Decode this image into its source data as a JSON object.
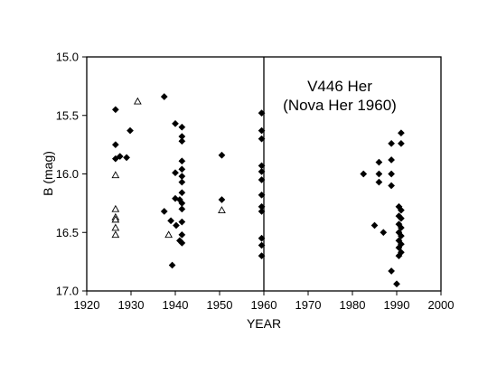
{
  "chart_data": {
    "type": "scatter",
    "title": "",
    "xlabel": "YEAR",
    "ylabel": "B (mag)",
    "xlim": [
      1920,
      2000
    ],
    "ylim": [
      15.0,
      17.0
    ],
    "y_inverted": true,
    "x_ticks": [
      "1920",
      "1930",
      "1940",
      "1950",
      "1960",
      "1970",
      "1980",
      "1990",
      "2000"
    ],
    "y_ticks": [
      "15.0",
      "15.5",
      "16.0",
      "16.5",
      "17.0"
    ],
    "grid": false,
    "legend": "none",
    "annotation": {
      "line1": "V446 Her",
      "line2": "(Nova Her 1960)"
    },
    "vertical_line_x": 1960,
    "series": [
      {
        "marker": "filled-diamond",
        "color": "#000000",
        "points": [
          [
            1926.5,
            15.45
          ],
          [
            1926.5,
            15.75
          ],
          [
            1926.5,
            15.87
          ],
          [
            1927.5,
            15.85
          ],
          [
            1929.0,
            15.86
          ],
          [
            1929.8,
            15.63
          ],
          [
            1937.5,
            15.34
          ],
          [
            1937.5,
            16.32
          ],
          [
            1939.0,
            16.4
          ],
          [
            1939.3,
            16.78
          ],
          [
            1940.0,
            15.57
          ],
          [
            1940.0,
            15.99
          ],
          [
            1940.0,
            16.21
          ],
          [
            1940.2,
            16.44
          ],
          [
            1941.0,
            16.22
          ],
          [
            1941.0,
            16.57
          ],
          [
            1941.5,
            15.6
          ],
          [
            1941.5,
            15.68
          ],
          [
            1941.5,
            15.72
          ],
          [
            1941.5,
            15.89
          ],
          [
            1941.5,
            15.96
          ],
          [
            1941.5,
            16.02
          ],
          [
            1941.5,
            16.07
          ],
          [
            1941.5,
            16.16
          ],
          [
            1941.5,
            16.25
          ],
          [
            1941.5,
            16.3
          ],
          [
            1941.5,
            16.41
          ],
          [
            1941.5,
            16.52
          ],
          [
            1941.5,
            16.59
          ],
          [
            1950.5,
            15.84
          ],
          [
            1950.5,
            16.22
          ],
          [
            1959.5,
            15.48
          ],
          [
            1959.5,
            15.63
          ],
          [
            1959.5,
            15.7
          ],
          [
            1959.5,
            15.93
          ],
          [
            1959.5,
            15.98
          ],
          [
            1959.5,
            16.05
          ],
          [
            1959.5,
            16.18
          ],
          [
            1959.5,
            16.28
          ],
          [
            1959.5,
            16.32
          ],
          [
            1959.5,
            16.55
          ],
          [
            1959.5,
            16.61
          ],
          [
            1959.5,
            16.7
          ],
          [
            1982.5,
            16.0
          ],
          [
            1985.0,
            16.44
          ],
          [
            1986.0,
            15.9
          ],
          [
            1986.0,
            16.0
          ],
          [
            1986.0,
            16.07
          ],
          [
            1987.0,
            16.5
          ],
          [
            1988.8,
            15.74
          ],
          [
            1988.8,
            15.88
          ],
          [
            1988.8,
            16.0
          ],
          [
            1988.8,
            16.1
          ],
          [
            1988.8,
            16.83
          ],
          [
            1990.0,
            16.94
          ],
          [
            1990.5,
            16.28
          ],
          [
            1990.5,
            16.36
          ],
          [
            1990.5,
            16.43
          ],
          [
            1990.5,
            16.5
          ],
          [
            1990.5,
            16.57
          ],
          [
            1990.5,
            16.63
          ],
          [
            1990.5,
            16.7
          ],
          [
            1991.0,
            15.65
          ],
          [
            1991.0,
            15.74
          ],
          [
            1991.0,
            16.31
          ],
          [
            1991.0,
            16.38
          ],
          [
            1991.0,
            16.46
          ],
          [
            1991.0,
            16.53
          ],
          [
            1991.0,
            16.6
          ],
          [
            1991.0,
            16.67
          ]
        ]
      },
      {
        "marker": "open-triangle",
        "color": "#000000",
        "points": [
          [
            1931.5,
            15.38
          ],
          [
            1926.5,
            16.01
          ],
          [
            1926.5,
            16.3
          ],
          [
            1926.5,
            16.37
          ],
          [
            1926.5,
            16.39
          ],
          [
            1926.5,
            16.46
          ],
          [
            1926.5,
            16.52
          ],
          [
            1938.5,
            16.52
          ],
          [
            1950.5,
            16.31
          ]
        ]
      }
    ]
  }
}
